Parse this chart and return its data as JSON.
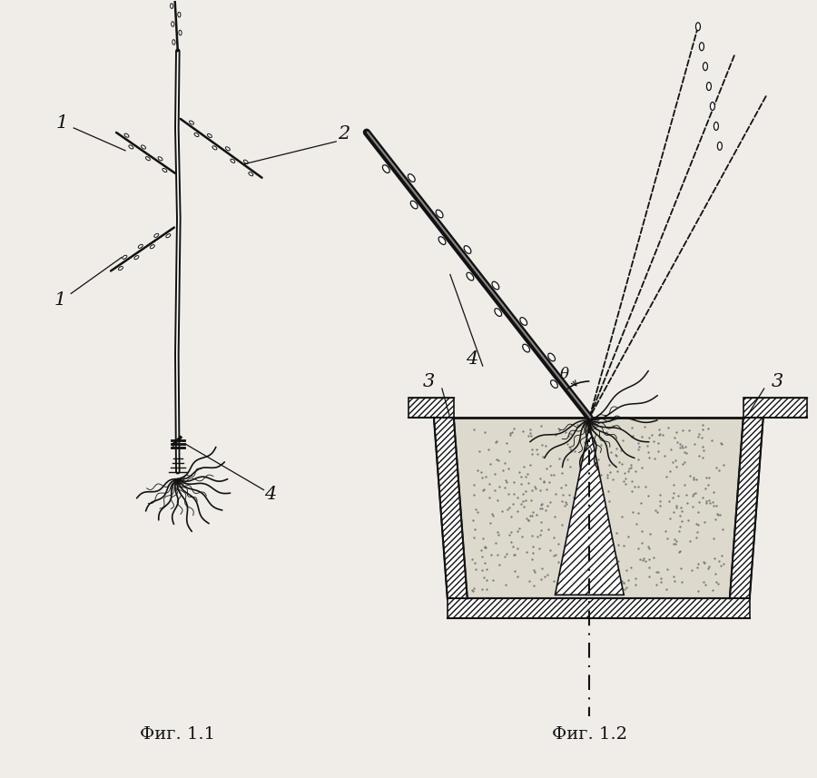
{
  "bg_color": "#f0ede8",
  "line_color": "#111111",
  "title1": "Фиг. 1.1",
  "title2": "Фиг. 1.2",
  "fig_width": 9.0,
  "fig_height": 8.57
}
